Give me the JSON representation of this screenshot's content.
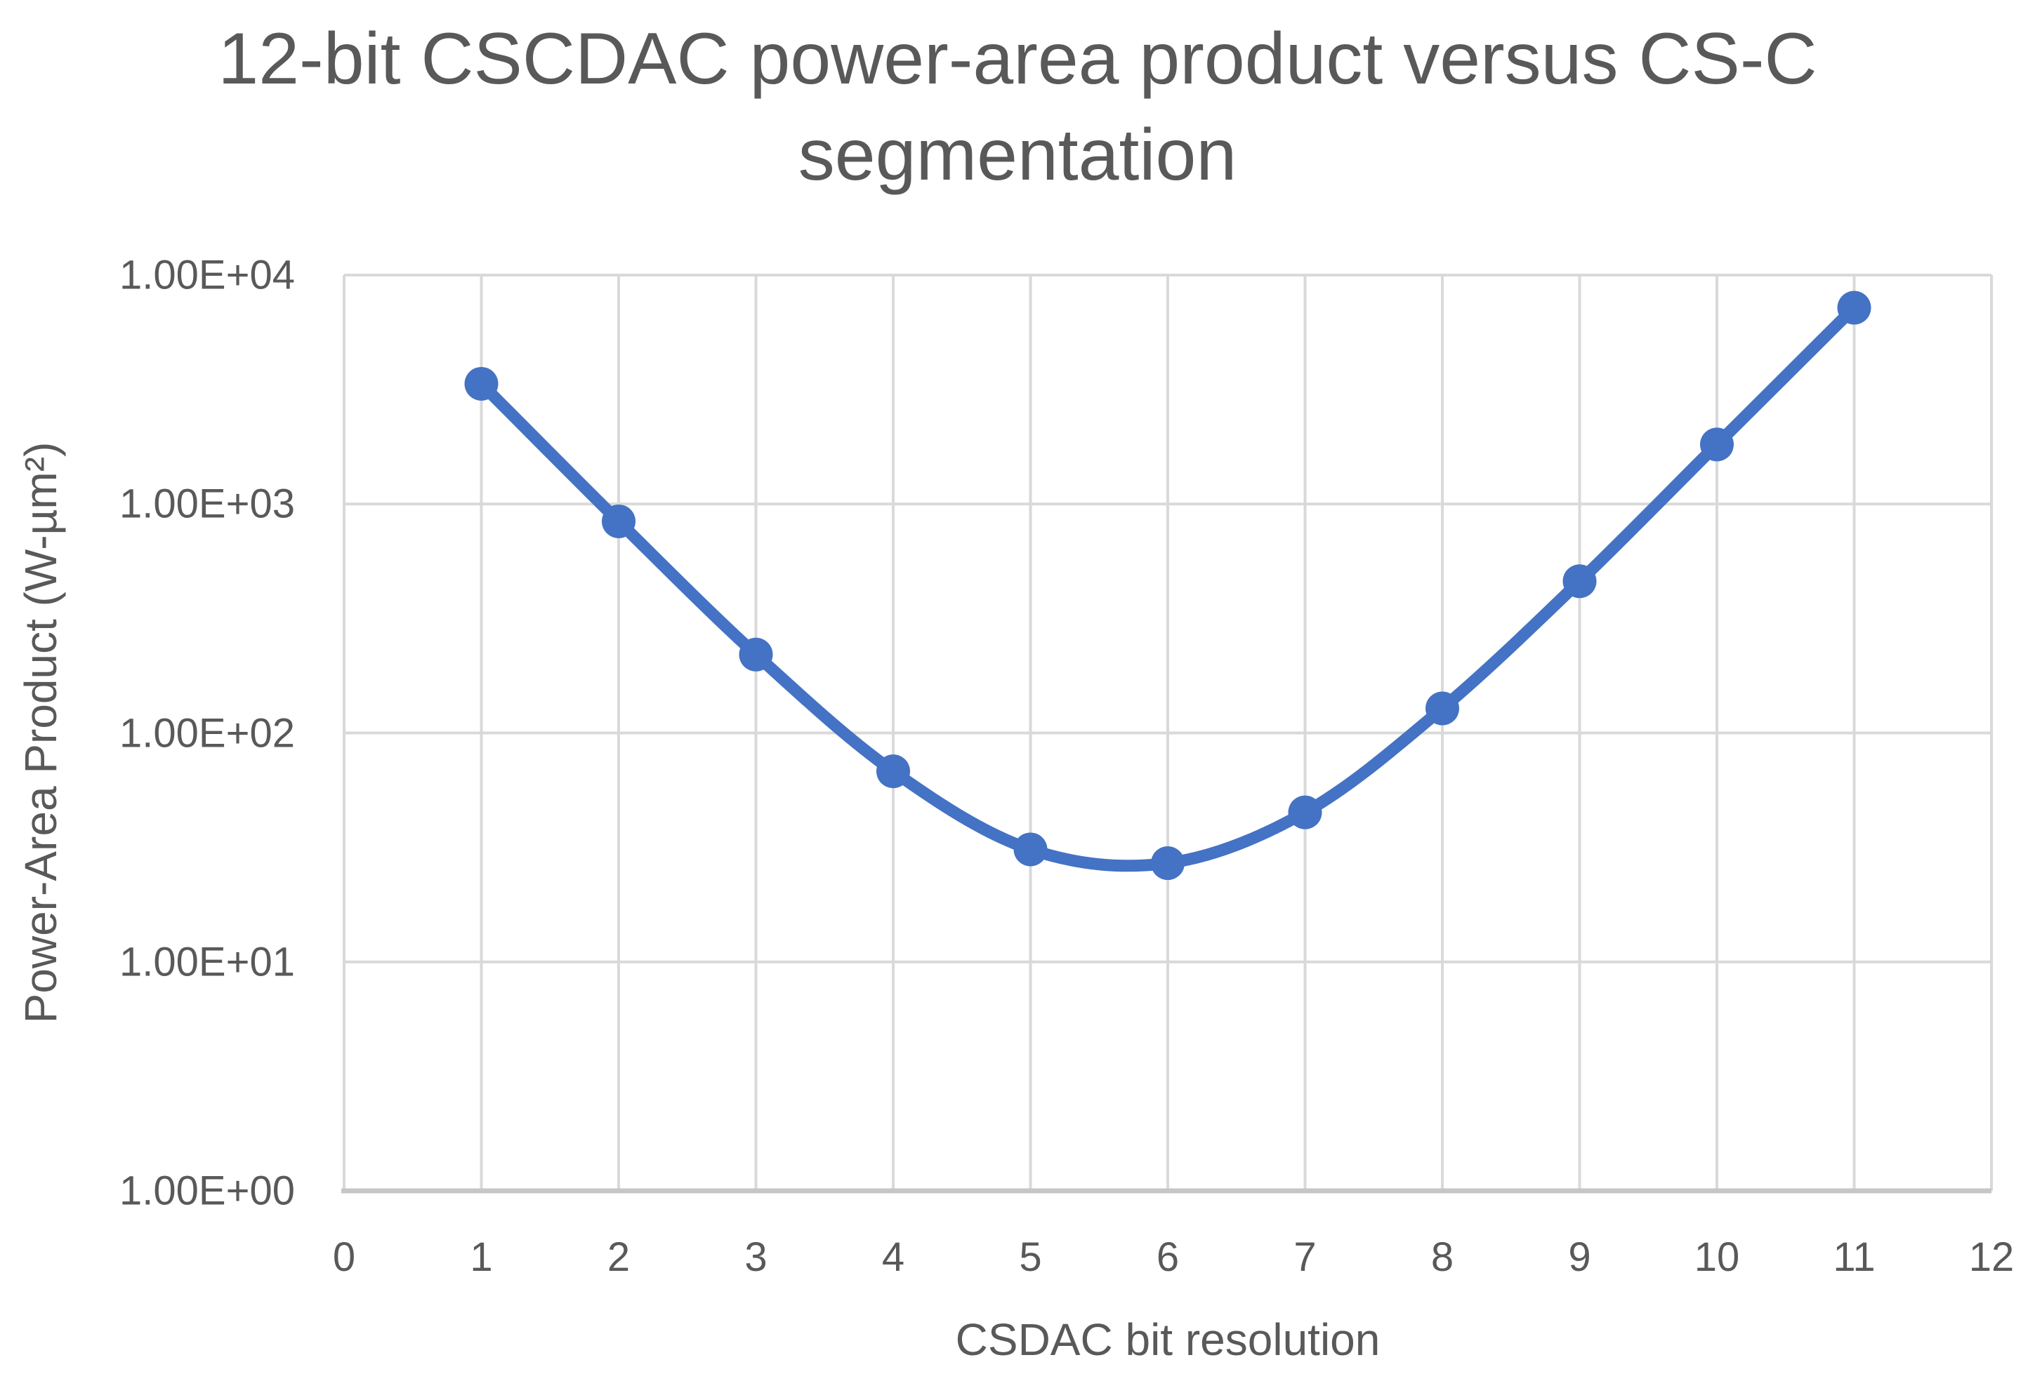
{
  "title": {
    "text": "12-bit CSCDAC power-area product versus CS-C segmentation",
    "lines": [
      "12-bit CSCDAC power-area product versus CS-C",
      "segmentation"
    ]
  },
  "y_axis": {
    "title": "Power-Area Product (W-µm²)",
    "tick_labels": [
      "1.00E+04",
      "1.00E+03",
      "1.00E+02",
      "1.00E+01",
      "1.00E+00"
    ],
    "scale": "log10"
  },
  "x_axis": {
    "title": "CSDAC bit resolution",
    "tick_labels": [
      "0",
      "1",
      "2",
      "3",
      "4",
      "5",
      "6",
      "7",
      "8",
      "9",
      "10",
      "11",
      "12"
    ]
  },
  "colors": {
    "series": "#4472C4",
    "gridline": "#D9D9D9",
    "axis_line": "#C6C6C6",
    "text": "#595959",
    "background": "#FFFFFF"
  },
  "chart_data": {
    "type": "line",
    "title": "12-bit CSCDAC power-area product versus CS-C segmentation",
    "xlabel": "CSDAC bit resolution",
    "ylabel": "Power-Area Product (W-µm²)",
    "x": [
      1,
      2,
      3,
      4,
      5,
      6,
      7,
      8,
      9,
      10,
      11
    ],
    "values": [
      3350,
      840,
      220,
      68,
      31,
      27,
      45,
      128,
      460,
      1820,
      7200
    ],
    "xlim": [
      0,
      12
    ],
    "ylim": [
      1,
      10000
    ],
    "y_scale": "log",
    "grid": true,
    "legend": false,
    "smoothed_line": true,
    "marker": "circle",
    "series_name": ""
  }
}
